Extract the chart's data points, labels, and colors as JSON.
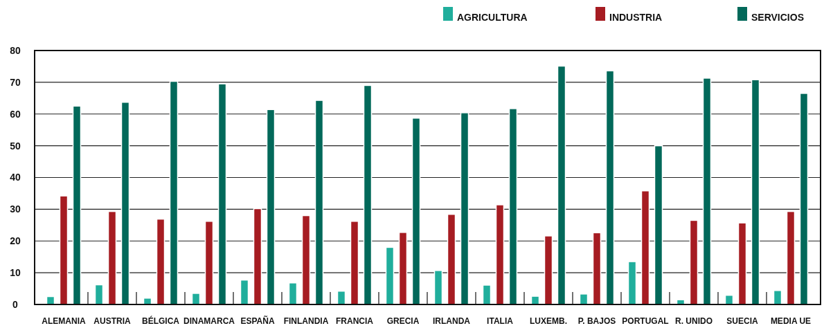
{
  "chart_data": {
    "type": "bar",
    "categories": [
      "ALEMANIA",
      "AUSTRIA",
      "BÉLGICA",
      "DINAMARCA",
      "ESPAÑA",
      "FINLANDIA",
      "FRANCIA",
      "GRECIA",
      "IRLANDA",
      "ITALIA",
      "LUXEMB.",
      "P. BAJOS",
      "PORTUGAL",
      "R. UNIDO",
      "SUECIA",
      "MEDIA UE"
    ],
    "series": [
      {
        "name": "AGRICULTURA",
        "color": "#20ae9c",
        "values": [
          2.5,
          6.2,
          2,
          3.5,
          7.7,
          6.8,
          4.2,
          18,
          10.7,
          6.1,
          2.6,
          3.3,
          13.5,
          1.5,
          2.9,
          4.4
        ]
      },
      {
        "name": "INDUSTRIA",
        "color": "#a61c22",
        "values": [
          34.2,
          29.3,
          26.9,
          26.2,
          30.2,
          28,
          26.2,
          22.7,
          28.4,
          31.4,
          21.6,
          22.6,
          35.8,
          26.5,
          25.7,
          29.3
        ]
      },
      {
        "name": "SERVICIOS",
        "color": "#02695a",
        "values": [
          62.5,
          63.7,
          70.3,
          69.5,
          61.4,
          64.3,
          69,
          58.7,
          60.4,
          61.7,
          75.1,
          73.6,
          50,
          71.3,
          70.8,
          66.5
        ]
      }
    ],
    "ylim": [
      0,
      80
    ],
    "yticks": [
      0,
      10,
      20,
      30,
      40,
      50,
      60,
      70,
      80
    ],
    "grid": "y",
    "legend": "top right"
  }
}
